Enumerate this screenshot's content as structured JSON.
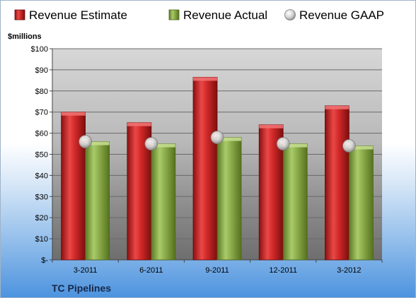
{
  "chart_data": {
    "type": "bar",
    "ylabel": "$millions",
    "categories": [
      "3-2011",
      "6-2011",
      "9-2011",
      "12-2011",
      "3-2012"
    ],
    "ylim": [
      0,
      100
    ],
    "yticks": [
      0,
      10,
      20,
      30,
      40,
      50,
      60,
      70,
      80,
      90,
      100
    ],
    "ytick_labels": [
      "$-",
      "$10",
      "$20",
      "$30",
      "$40",
      "$50",
      "$60",
      "$70",
      "$80",
      "$90",
      "$100"
    ],
    "grid": true,
    "legend": "top",
    "series": [
      {
        "name": "Revenue Estimate",
        "kind": "bar",
        "color": "#d42a2a",
        "values": [
          70,
          65,
          86.5,
          64,
          73
        ]
      },
      {
        "name": "Revenue Actual",
        "kind": "bar",
        "color": "#8fb04e",
        "values": [
          56,
          55,
          58,
          55,
          54
        ]
      },
      {
        "name": "Revenue GAAP",
        "kind": "marker",
        "color": "#c8c8c8",
        "values": [
          56,
          55,
          58,
          55,
          54
        ]
      }
    ],
    "footnote": "TC Pipelines"
  }
}
